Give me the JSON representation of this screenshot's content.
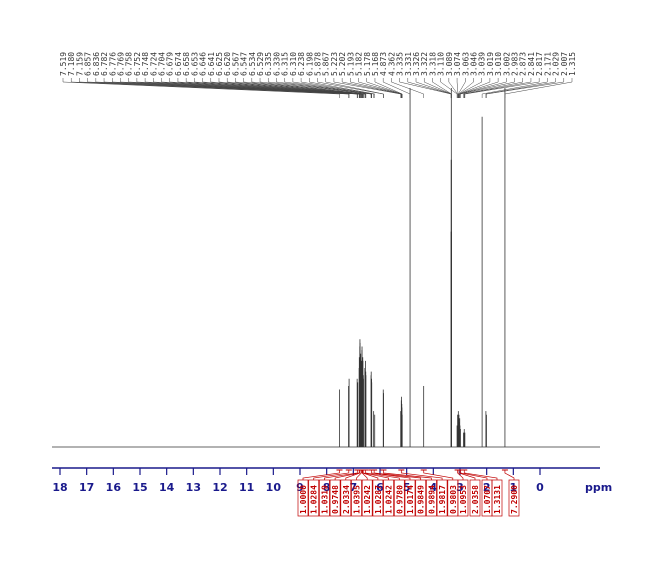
{
  "chart_data": {
    "type": "spectrum",
    "xlabel": "ppm",
    "xlim": [
      18.3,
      -2.25
    ],
    "xticks": [
      18,
      17,
      16,
      15,
      14,
      13,
      12,
      11,
      10,
      9,
      8,
      7,
      6,
      5,
      4,
      3,
      2,
      1,
      0
    ],
    "ylim": [
      0,
      100
    ],
    "color": "#333333",
    "axis_color": "#1a1a8c",
    "integral_color": "#c00000",
    "peaks": {
      "x": [
        7.519,
        7.18,
        7.159,
        6.857,
        6.836,
        6.782,
        6.776,
        6.769,
        6.758,
        6.752,
        6.748,
        6.724,
        6.704,
        6.679,
        6.674,
        6.658,
        6.653,
        6.646,
        6.641,
        6.625,
        6.62,
        6.567,
        6.547,
        6.534,
        6.529,
        6.335,
        6.33,
        6.315,
        6.31,
        6.238,
        6.198,
        5.878,
        5.867,
        5.223,
        5.202,
        5.193,
        5.182,
        5.178,
        5.168,
        4.873,
        4.362,
        3.335,
        3.331,
        3.326,
        3.322,
        3.318,
        3.11,
        3.089,
        3.074,
        3.063,
        3.046,
        3.039,
        3.019,
        3.01,
        3.002,
        2.983,
        2.873,
        2.841,
        2.817,
        2.171,
        2.029,
        2.007,
        1.315
      ],
      "labels": [
        "7.519",
        "7.180",
        "7.159",
        "6.857",
        "6.836",
        "6.782",
        "6.776",
        "6.769",
        "6.758",
        "6.752",
        "6.748",
        "6.724",
        "6.704",
        "6.679",
        "6.674",
        "6.658",
        "6.653",
        "6.646",
        "6.641",
        "6.625",
        "6.620",
        "6.567",
        "6.547",
        "6.534",
        "6.529",
        "6.335",
        "6.330",
        "6.315",
        "6.310",
        "6.238",
        "6.198",
        "5.878",
        "5.867",
        "5.223",
        "5.202",
        "5.193",
        "5.182",
        "5.178",
        "5.168",
        "4.873",
        "4.362",
        "3.335",
        "3.331",
        "3.326",
        "3.322",
        "3.318",
        "3.110",
        "3.089",
        "3.074",
        "3.063",
        "3.046",
        "3.039",
        "3.019",
        "3.010",
        "3.002",
        "2.983",
        "2.873",
        "2.841",
        "2.817",
        "2.171",
        "2.029",
        "2.007",
        "1.315"
      ],
      "values": [
        16,
        17,
        19,
        19,
        18,
        22,
        25,
        24,
        28,
        30,
        29,
        26,
        24,
        27,
        28,
        24,
        23,
        25,
        24,
        20,
        19,
        22,
        24,
        21,
        20,
        20,
        21,
        19,
        18,
        10,
        9,
        16,
        15,
        10,
        13,
        14,
        12,
        11,
        9,
        100,
        17,
        60,
        80,
        100,
        80,
        60,
        6,
        9,
        8,
        10,
        8,
        9,
        7,
        8,
        6,
        5,
        4,
        5,
        4,
        92,
        10,
        9,
        100
      ]
    },
    "integrals": {
      "x": [
        7.52,
        7.17,
        6.85,
        6.78,
        6.75,
        6.7,
        6.67,
        6.65,
        6.63,
        6.55,
        6.32,
        6.22,
        5.87,
        5.2,
        4.36,
        3.09,
        3.04,
        2.98,
        2.84,
        1.315
      ],
      "values": [
        1.0,
        1.0284,
        1.0319,
        0.9748,
        2.0334,
        1.0395,
        1.0242,
        1.0287,
        1.0242,
        0.978,
        1.0174,
        0.9849,
        0.9894,
        1.9817,
        0.9803,
        1.0953,
        2.0358,
        1.0707,
        1.3131,
        7.29
      ],
      "value_labels": [
        "1.0000",
        "1.0284",
        "1.0319",
        "0.9748",
        "2.0334",
        "1.0395",
        "1.0242",
        "1.0287",
        "1.0242",
        "0.9780",
        "1.0174",
        "0.9849",
        "0.9894",
        "1.9817",
        "0.9803",
        "1.0953",
        "2.0358",
        "1.0707",
        "1.3131",
        "7.2900"
      ]
    }
  }
}
